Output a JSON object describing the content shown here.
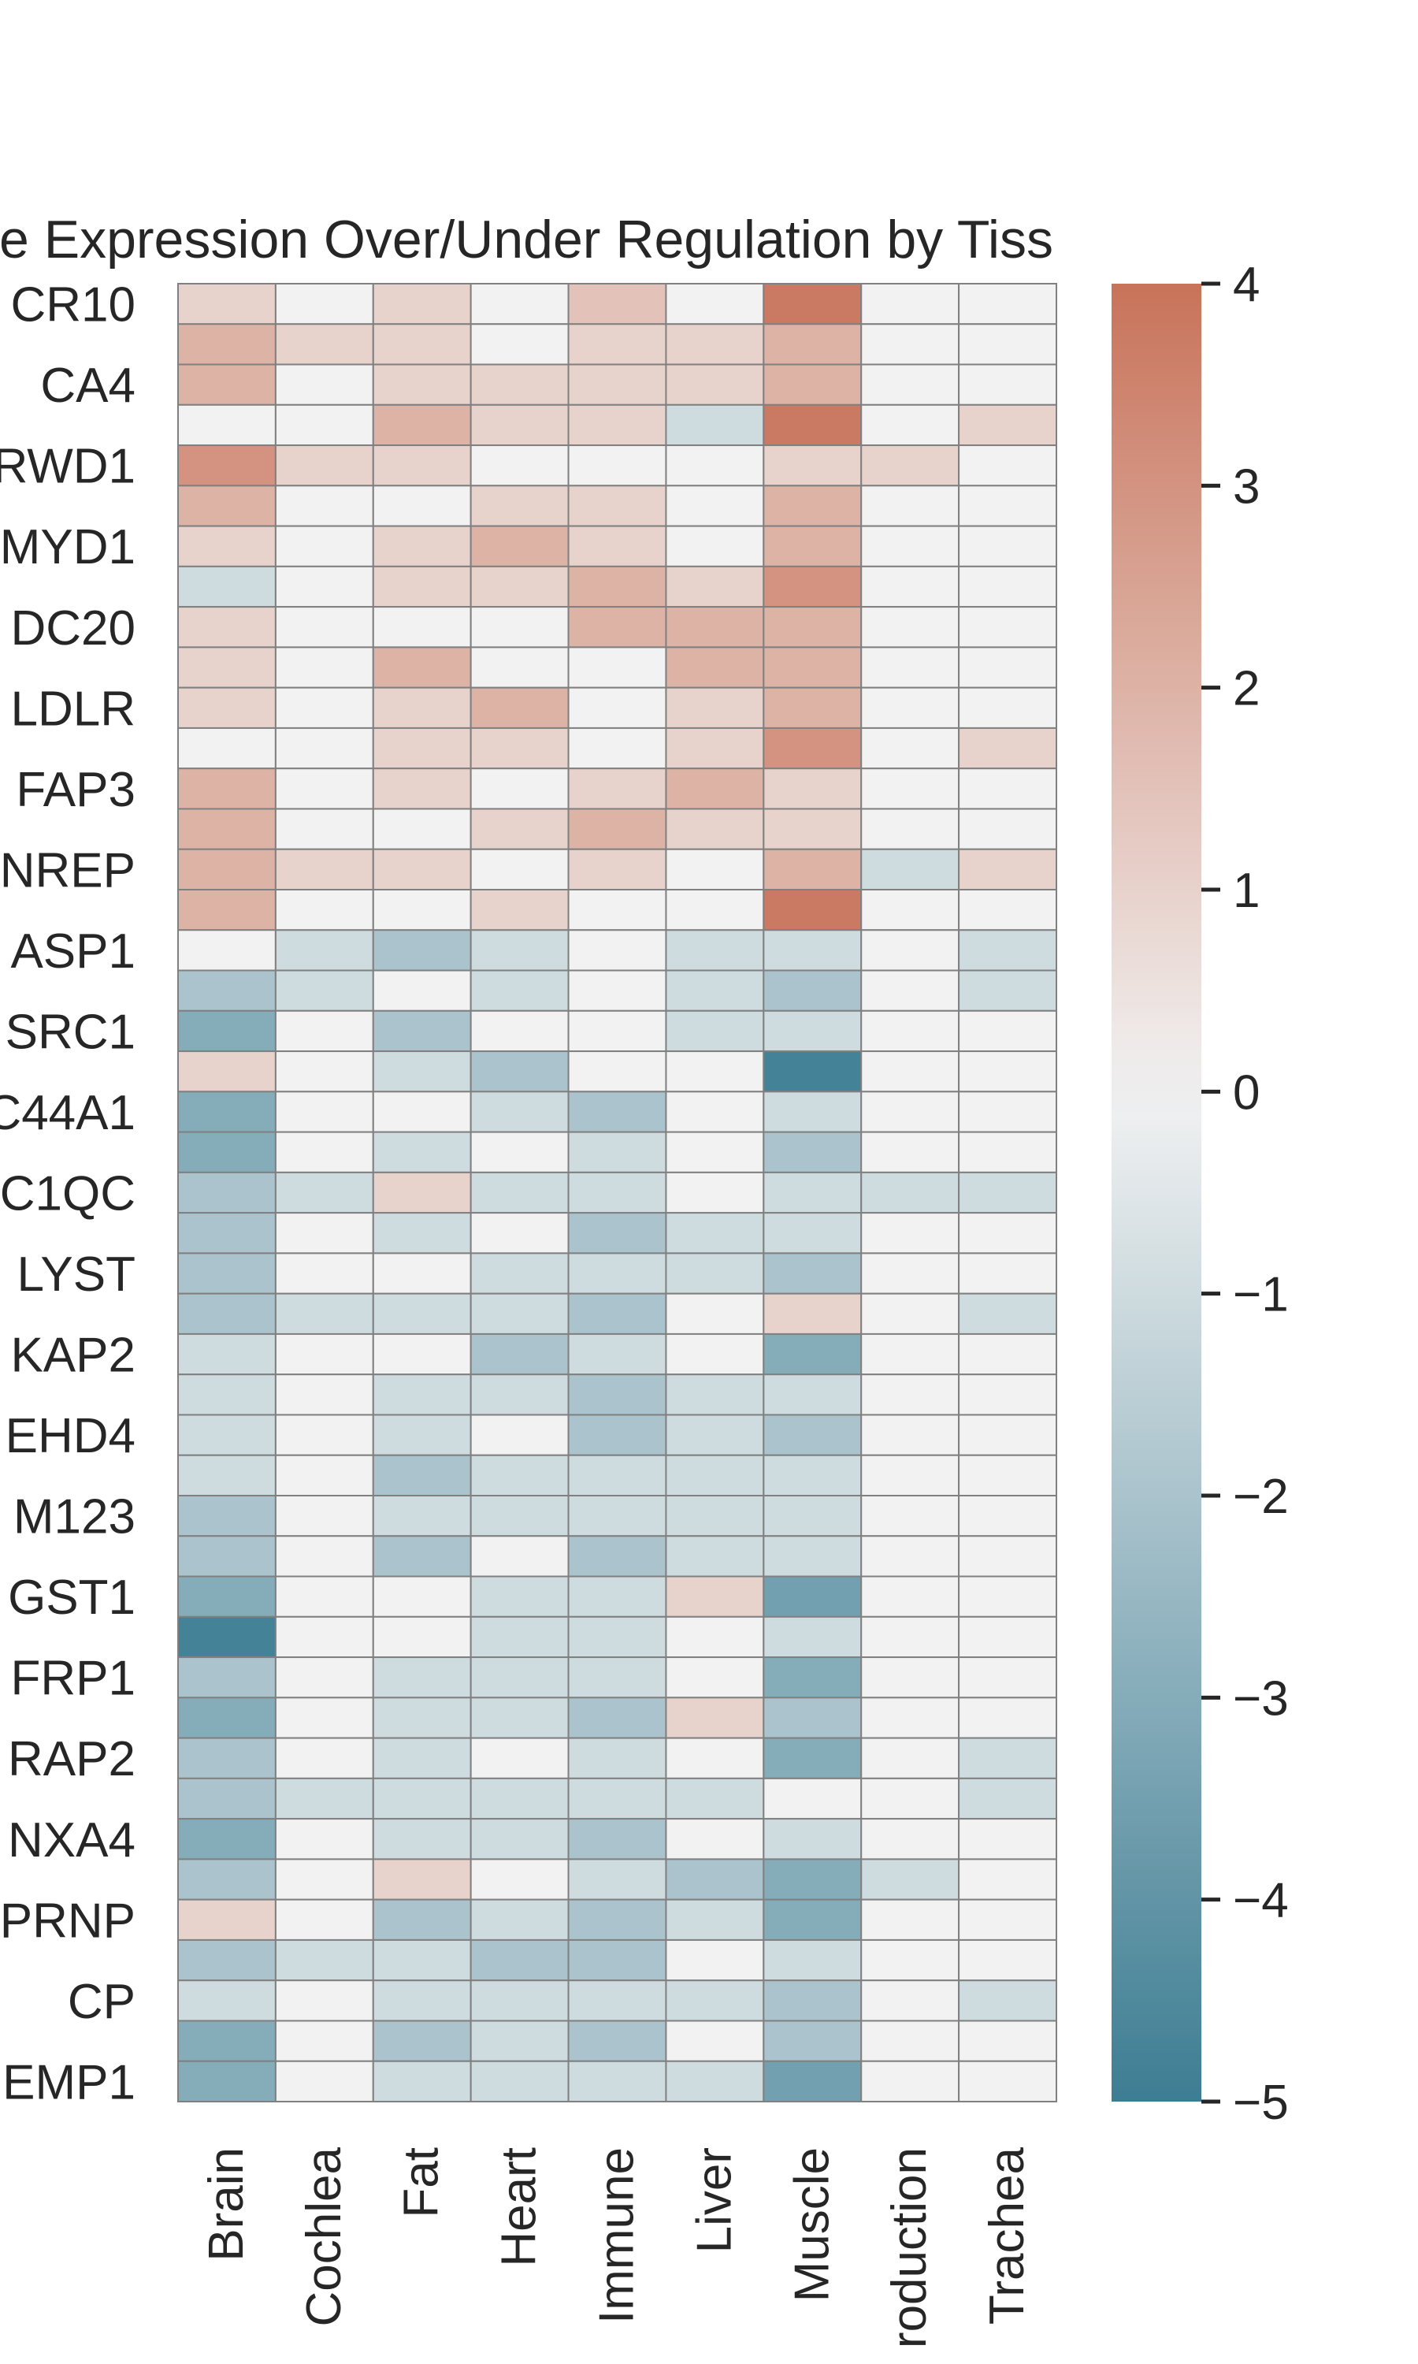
{
  "chart_data": {
    "type": "heatmap",
    "title": "ensive Gene Expression Over/Under Regulation by Tiss",
    "xlabel": "",
    "ylabel": "",
    "colorbar": {
      "min": -5,
      "max": 4,
      "ticks": [
        4,
        3,
        2,
        1,
        0,
        -1,
        -2,
        -3,
        -4,
        -5
      ],
      "tick_labels": [
        "4",
        "3",
        "2",
        "1",
        "0",
        "−1",
        "−2",
        "−3",
        "−4",
        "−5"
      ],
      "color_low": "#3d7d93",
      "color_mid": "#f2f2f2",
      "color_high": "#c8735a"
    },
    "columns": [
      "Brain",
      "Cochlea",
      "Fat",
      "Heart",
      "Immune",
      "Liver",
      "Muscle",
      "roduction",
      "Trachea"
    ],
    "row_labels": [
      "CR10",
      "CA4",
      "RWD1",
      "MYD1",
      "DC20",
      "LDLR",
      "FAP3",
      "NREP",
      "ASP1",
      "SRC1",
      "C44A1",
      "C1QC",
      "LYST",
      "KAP2",
      "EHD4",
      "M123",
      "GST1",
      "FRP1",
      "RAP2",
      "NXA4",
      "PRNP",
      "CP",
      "EMP1"
    ],
    "label_every": 2,
    "values": [
      [
        1,
        0,
        1,
        0,
        1.5,
        0,
        3.8,
        0,
        0
      ],
      [
        2,
        1,
        1,
        0,
        1,
        1,
        2,
        0,
        0
      ],
      [
        2,
        0,
        1,
        1,
        1,
        1,
        2,
        0,
        0
      ],
      [
        0,
        0,
        2,
        1,
        1,
        -1,
        3.8,
        0,
        1
      ],
      [
        3,
        1,
        1,
        0,
        0,
        0,
        1,
        1,
        0
      ],
      [
        2,
        0,
        0,
        1,
        1,
        0,
        2,
        0,
        0
      ],
      [
        1,
        0,
        1,
        2,
        1,
        0,
        2,
        0,
        0
      ],
      [
        -1,
        0,
        1,
        1,
        2,
        1,
        3,
        0,
        0
      ],
      [
        1,
        0,
        0,
        0,
        2,
        2,
        2,
        0,
        0
      ],
      [
        1,
        0,
        2,
        0,
        0,
        2,
        2,
        0,
        0
      ],
      [
        1,
        0,
        1,
        2,
        0,
        1,
        2,
        0,
        0
      ],
      [
        0,
        0,
        1,
        1,
        0,
        1,
        3,
        0,
        1
      ],
      [
        2,
        0,
        1,
        0,
        1,
        2,
        1,
        0,
        0
      ],
      [
        2,
        0,
        0,
        1,
        2,
        1,
        1,
        0,
        0
      ],
      [
        2,
        1,
        1,
        0,
        1,
        0,
        2,
        -1,
        1
      ],
      [
        2,
        0,
        0,
        1,
        0,
        0,
        3.8,
        0,
        0
      ],
      [
        0,
        -1,
        -2,
        -1,
        0,
        -1,
        -1,
        0,
        -1
      ],
      [
        -2,
        -1,
        0,
        -1,
        0,
        -1,
        -2,
        0,
        -1
      ],
      [
        -3,
        0,
        -2,
        0,
        0,
        -1,
        -1,
        0,
        0
      ],
      [
        1,
        0,
        -1,
        -2,
        0,
        0,
        -4.8,
        0,
        0
      ],
      [
        -3,
        0,
        0,
        -1,
        -2,
        0,
        -1,
        0,
        0
      ],
      [
        -3,
        0,
        -1,
        0,
        -1,
        0,
        -2,
        0,
        0
      ],
      [
        -2,
        -1,
        1,
        -1,
        -1,
        0,
        -1,
        -1,
        -1
      ],
      [
        -2,
        0,
        -1,
        0,
        -2,
        -1,
        -1,
        0,
        0
      ],
      [
        -2,
        0,
        0,
        -1,
        -1,
        -1,
        -2,
        0,
        0
      ],
      [
        -2,
        -1,
        -1,
        -1,
        -2,
        0,
        1,
        0,
        -1
      ],
      [
        -1,
        0,
        0,
        -2,
        -1,
        0,
        -3,
        0,
        0
      ],
      [
        -1,
        0,
        -1,
        -1,
        -2,
        -1,
        -1,
        0,
        0
      ],
      [
        -1,
        0,
        -1,
        0,
        -2,
        -1,
        -2,
        0,
        0
      ],
      [
        -1,
        0,
        -2,
        -1,
        -1,
        -1,
        -1,
        0,
        0
      ],
      [
        -2,
        0,
        -1,
        -1,
        -1,
        -1,
        -1,
        0,
        0
      ],
      [
        -2,
        0,
        -2,
        0,
        -2,
        -1,
        -1,
        0,
        0
      ],
      [
        -3,
        0,
        0,
        -1,
        -1,
        1,
        -3.5,
        0,
        0
      ],
      [
        -4.8,
        0,
        0,
        -1,
        -1,
        0,
        -1,
        0,
        0
      ],
      [
        -2,
        0,
        -1,
        -1,
        -1,
        0,
        -3,
        0,
        0
      ],
      [
        -3,
        0,
        -1,
        -1,
        -2,
        1,
        -2,
        0,
        0
      ],
      [
        -2,
        0,
        -1,
        0,
        -1,
        0,
        -3,
        0,
        -1
      ],
      [
        -2,
        -1,
        -1,
        -1,
        -1,
        -1,
        0,
        0,
        -1
      ],
      [
        -3,
        0,
        -1,
        -1,
        -2,
        0,
        -1,
        0,
        0
      ],
      [
        -2,
        0,
        1,
        0,
        -1,
        -2,
        -3,
        -1,
        0
      ],
      [
        1,
        0,
        -2,
        -1,
        -2,
        -1,
        -3,
        0,
        0
      ],
      [
        -2,
        -1,
        -1,
        -2,
        -2,
        0,
        -1,
        0,
        0
      ],
      [
        -1,
        0,
        -1,
        -1,
        -1,
        -1,
        -2,
        0,
        -1
      ],
      [
        -3,
        0,
        -2,
        -1,
        -2,
        0,
        -2,
        0,
        0
      ],
      [
        -3,
        0,
        -1,
        -1,
        -1,
        -1,
        -3.5,
        0,
        0
      ]
    ]
  }
}
